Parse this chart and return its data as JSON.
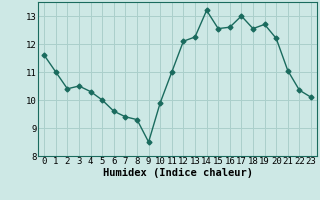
{
  "x": [
    0,
    1,
    2,
    3,
    4,
    5,
    6,
    7,
    8,
    9,
    10,
    11,
    12,
    13,
    14,
    15,
    16,
    17,
    18,
    19,
    20,
    21,
    22,
    23
  ],
  "y": [
    11.6,
    11.0,
    10.4,
    10.5,
    10.3,
    10.0,
    9.6,
    9.4,
    9.3,
    8.5,
    9.9,
    11.0,
    12.1,
    12.25,
    13.2,
    12.55,
    12.6,
    13.0,
    12.55,
    12.7,
    12.2,
    11.05,
    10.35,
    10.1
  ],
  "line_color": "#1a6b5e",
  "marker": "D",
  "marker_size": 2.5,
  "bg_color": "#cde8e5",
  "grid_color": "#aacfcb",
  "xlabel": "Humidex (Indice chaleur)",
  "ylim": [
    8,
    13.5
  ],
  "xlim": [
    -0.5,
    23.5
  ],
  "yticks": [
    8,
    9,
    10,
    11,
    12,
    13
  ],
  "xticks": [
    0,
    1,
    2,
    3,
    4,
    5,
    6,
    7,
    8,
    9,
    10,
    11,
    12,
    13,
    14,
    15,
    16,
    17,
    18,
    19,
    20,
    21,
    22,
    23
  ],
  "xlabel_fontsize": 7.5,
  "tick_fontsize": 6.5,
  "line_width": 1.0
}
